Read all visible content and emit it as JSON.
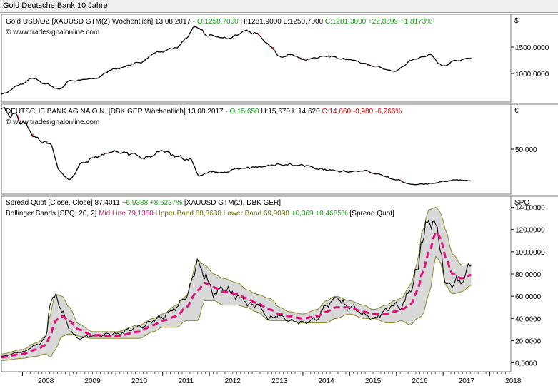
{
  "window": {
    "title": "Gold Deutsche Bank 10 Jahre"
  },
  "x_axis": {
    "years": [
      "2008",
      "2009",
      "2010",
      "2011",
      "2012",
      "2013",
      "2014",
      "2015",
      "2016",
      "2017",
      "2018"
    ]
  },
  "panels": [
    {
      "id": "gold",
      "legend_parts": [
        {
          "text": "Gold USD/OZ [XAUUSD GTM(2)  Wöchentlich] 13.08.2017 - ",
          "color": "#000000"
        },
        {
          "text": "O:1258,7000 ",
          "color": "#1a9a1a"
        },
        {
          "text": "H:1281,9000 L:1250,7000 ",
          "color": "#000000"
        },
        {
          "text": "C:1281,3000 +22,8699 +1,8173%",
          "color": "#1a9a1a"
        }
      ],
      "source": "© www.tradesignalonline.com",
      "unit": "$",
      "ticks": [
        "1500,0000",
        "1000,0000"
      ]
    },
    {
      "id": "deutsche-bank",
      "legend_parts": [
        {
          "text": "DEUTSCHE BANK AG NA O.N. [DBK GER  Wöchentlich] 13.08.2017 - ",
          "color": "#000000"
        },
        {
          "text": "O:15,650 ",
          "color": "#1a9a1a"
        },
        {
          "text": "H:15,670 L:14,620 ",
          "color": "#000000"
        },
        {
          "text": "C:14,660 -0,980 -6,266%",
          "color": "#cc0000"
        }
      ],
      "source": "© www.tradesignalonline.com",
      "unit": "€",
      "ticks": [
        "50,000"
      ]
    },
    {
      "id": "spread",
      "legend_line1": [
        {
          "text": "Spread Quot [Close, Close] 87,4011 ",
          "color": "#000000"
        },
        {
          "text": "+6,9388 +8,6237% ",
          "color": "#1a9a1a"
        },
        {
          "text": "[XAUUSD GTM(2), DBK GER]",
          "color": "#000000"
        }
      ],
      "legend_line2": [
        {
          "text": "Bollinger Bands [SPQ, 20, 2] ",
          "color": "#000000"
        },
        {
          "text": "Mid Line 79,1368 ",
          "color": "#d4127a"
        },
        {
          "text": "Upper Band 88,3638 Lower Band 69,9098 ",
          "color": "#6b6b00"
        },
        {
          "text": "+0,369 +0,4685% ",
          "color": "#1a9a1a"
        },
        {
          "text": "[Spread Quot]",
          "color": "#000000"
        }
      ],
      "unit": "SPQ",
      "ticks": [
        "140,0000",
        "120,0000",
        "100,0000",
        "80,0000",
        "60,0000",
        "40,0000",
        "20,0000",
        "0,0000"
      ]
    }
  ],
  "colors": {
    "midline": "#e0107a",
    "band_fill": "#d8d8d8",
    "band_line": "#8a8a2a",
    "price": "#000000",
    "down_candle": "#d01010"
  },
  "chart_data": [
    {
      "type": "line",
      "x": [
        2007.55,
        2008.0,
        2008.2,
        2008.5,
        2008.8,
        2009.0,
        2009.5,
        2010.0,
        2010.5,
        2010.9,
        2011.3,
        2011.5,
        2011.7,
        2012.0,
        2012.4,
        2012.8,
        2013.0,
        2013.3,
        2013.5,
        2013.8,
        2014.0,
        2014.5,
        2015.0,
        2015.5,
        2015.95,
        2016.4,
        2016.7,
        2017.0,
        2017.3,
        2017.6
      ],
      "series": [
        {
          "values": [
            680,
            850,
            950,
            850,
            760,
            900,
            930,
            1100,
            1200,
            1380,
            1450,
            1600,
            1800,
            1650,
            1600,
            1720,
            1680,
            1480,
            1300,
            1330,
            1250,
            1310,
            1250,
            1150,
            1060,
            1260,
            1330,
            1150,
            1240,
            1281.3
          ]
        }
      ],
      "ylim": [
        550,
        2000
      ]
    },
    {
      "type": "line",
      "x": [
        2007.55,
        2007.8,
        2008.0,
        2008.3,
        2008.6,
        2008.8,
        2009.0,
        2009.3,
        2009.6,
        2010.0,
        2010.3,
        2010.6,
        2011.0,
        2011.3,
        2011.6,
        2011.8,
        2012.0,
        2012.3,
        2012.6,
        2013.0,
        2013.5,
        2014.0,
        2014.5,
        2015.0,
        2015.3,
        2015.6,
        2016.0,
        2016.3,
        2016.5,
        2016.8,
        2017.0,
        2017.3,
        2017.6
      ],
      "series": [
        {
          "values": [
            95,
            88,
            80,
            62,
            55,
            25,
            16,
            35,
            42,
            48,
            45,
            40,
            48,
            42,
            38,
            20,
            25,
            24,
            28,
            30,
            33,
            32,
            27,
            25,
            26,
            22,
            16,
            11,
            11,
            12,
            14,
            16,
            14.66
          ]
        }
      ],
      "ylim": [
        0,
        100
      ]
    },
    {
      "type": "line",
      "x": [
        2007.55,
        2008.0,
        2008.3,
        2008.5,
        2008.6,
        2008.7,
        2008.85,
        2009.0,
        2009.2,
        2009.5,
        2010.0,
        2010.5,
        2010.8,
        2011.0,
        2011.3,
        2011.5,
        2011.75,
        2011.9,
        2012.1,
        2012.3,
        2012.6,
        2012.8,
        2013.0,
        2013.3,
        2013.5,
        2013.7,
        2014.0,
        2014.3,
        2014.5,
        2014.7,
        2015.0,
        2015.3,
        2015.5,
        2015.8,
        2015.95,
        2016.1,
        2016.3,
        2016.45,
        2016.55,
        2016.7,
        2016.85,
        2016.95,
        2017.05,
        2017.2,
        2017.4,
        2017.6
      ],
      "series": [
        {
          "name": "Spread Quot",
          "values": [
            6,
            10,
            16,
            22,
            55,
            60,
            48,
            30,
            22,
            24,
            26,
            32,
            38,
            42,
            50,
            60,
            90,
            80,
            62,
            68,
            60,
            54,
            52,
            40,
            42,
            38,
            36,
            40,
            52,
            58,
            50,
            44,
            40,
            48,
            52,
            50,
            65,
            85,
            110,
            130,
            120,
            100,
            70,
            72,
            76,
            87.4011
          ]
        },
        {
          "name": "Mid Line",
          "values": [
            5,
            8,
            12,
            16,
            25,
            38,
            42,
            38,
            30,
            25,
            24,
            28,
            34,
            38,
            42,
            50,
            65,
            72,
            68,
            64,
            62,
            58,
            54,
            48,
            44,
            42,
            40,
            42,
            46,
            50,
            50,
            46,
            44,
            44,
            46,
            48,
            52,
            65,
            80,
            100,
            118,
            112,
            95,
            80,
            76,
            79.1368
          ]
        },
        {
          "name": "Upper Band",
          "values": [
            8,
            12,
            18,
            24,
            45,
            62,
            60,
            50,
            35,
            28,
            28,
            34,
            40,
            44,
            52,
            60,
            92,
            88,
            80,
            76,
            72,
            66,
            62,
            58,
            50,
            46,
            44,
            48,
            56,
            60,
            56,
            52,
            48,
            52,
            56,
            58,
            70,
            90,
            118,
            138,
            140,
            135,
            120,
            98,
            88,
            88.3638
          ]
        },
        {
          "name": "Lower Band",
          "values": [
            2,
            4,
            6,
            8,
            5,
            12,
            24,
            26,
            24,
            22,
            22,
            22,
            28,
            32,
            32,
            38,
            38,
            56,
            56,
            52,
            52,
            50,
            46,
            38,
            38,
            38,
            36,
            36,
            36,
            40,
            44,
            40,
            40,
            36,
            36,
            38,
            34,
            40,
            42,
            62,
            96,
            90,
            70,
            62,
            64,
            69.9098
          ]
        }
      ],
      "ylim": [
        -8,
        150
      ]
    }
  ]
}
